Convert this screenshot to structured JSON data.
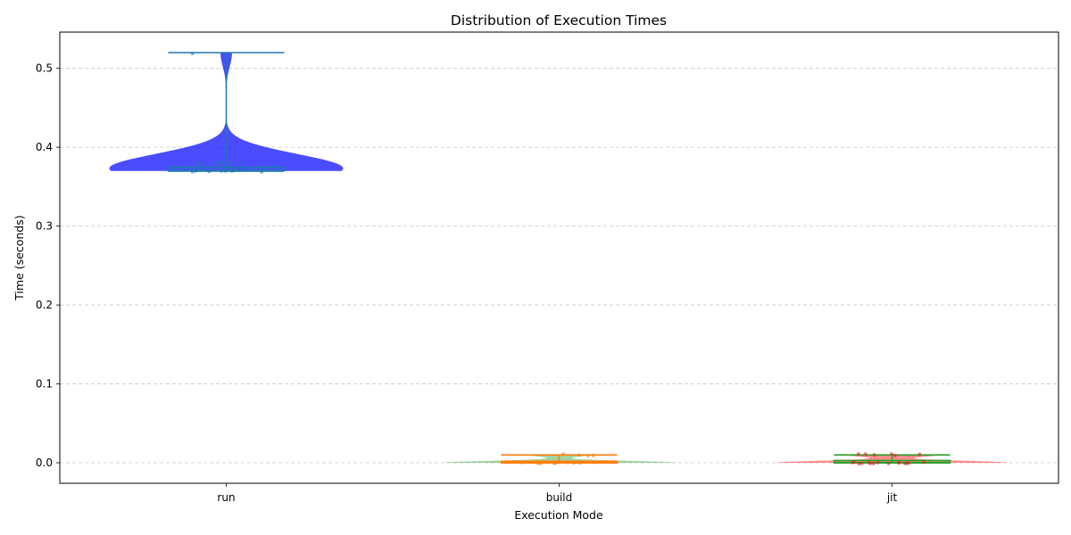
{
  "chart_data": {
    "type": "violin",
    "title": "Distribution of Execution Times",
    "xlabel": "Execution Mode",
    "ylabel": "Time (seconds)",
    "categories": [
      "run",
      "build",
      "jit"
    ],
    "ylim": [
      -0.026,
      0.546
    ],
    "yticks": [
      0.0,
      0.1,
      0.2,
      0.3,
      0.4,
      0.5
    ],
    "ytick_labels": [
      "0.0",
      "0.1",
      "0.2",
      "0.3",
      "0.4",
      "0.5"
    ],
    "grid": "y-dashed",
    "series": [
      {
        "category": "run",
        "violin_color": "#0000ff",
        "box_color": "#1f77b4",
        "point_color": "#1f77b4",
        "min": 0.37,
        "q1": 0.37,
        "median": 0.37,
        "q3": 0.375,
        "max": 0.52,
        "points": [
          0.37,
          0.37,
          0.37,
          0.37,
          0.37,
          0.37,
          0.37,
          0.37,
          0.37,
          0.37,
          0.37,
          0.37,
          0.37,
          0.37,
          0.38,
          0.38,
          0.38,
          0.38,
          0.38,
          0.38,
          0.38,
          0.52
        ]
      },
      {
        "category": "build",
        "violin_color": "#2ca02c",
        "box_color": "#ff7f0e",
        "point_color": "#ff7f0e",
        "min": 0.0,
        "q1": 0.0,
        "median": 0.0,
        "q3": 0.002,
        "max": 0.01,
        "points": [
          0.0,
          0.0,
          0.0,
          0.0,
          0.0,
          0.0,
          0.0,
          0.0,
          0.0,
          0.0,
          0.0,
          0.0,
          0.0,
          0.0,
          0.0,
          0.01,
          0.01,
          0.01,
          0.01
        ]
      },
      {
        "category": "jit",
        "violin_color": "#ff0000",
        "box_color": "#2ca02c",
        "point_color": "#d62728",
        "min": 0.0,
        "q1": 0.0,
        "median": 0.0,
        "q3": 0.003,
        "max": 0.01,
        "points": [
          0.0,
          0.0,
          0.0,
          0.0,
          0.0,
          0.0,
          0.0,
          0.0,
          0.0,
          0.0,
          0.0,
          0.0,
          0.0,
          0.0,
          0.0,
          0.01,
          0.01,
          0.01,
          0.01,
          0.01,
          0.01
        ]
      }
    ]
  }
}
